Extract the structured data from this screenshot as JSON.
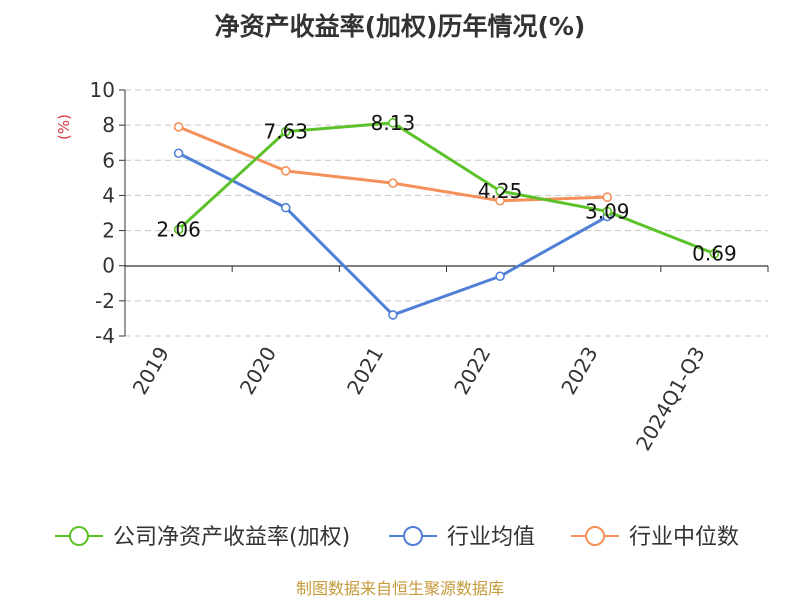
{
  "chart_data": {
    "type": "line",
    "title": "净资产收益率(加权)历年情况(%)",
    "ylabel": "(%)",
    "categories": [
      "2019",
      "2020",
      "2021",
      "2022",
      "2023",
      "2024Q1-Q3"
    ],
    "y_ticks": [
      "10",
      "8",
      "6",
      "4",
      "2",
      "0",
      "-2",
      "-4"
    ],
    "ylim": [
      -4,
      10
    ],
    "grid": "horizontal dashed",
    "legend_position": "bottom",
    "series": [
      {
        "name": "公司净资产收益率(加权)",
        "color": "#5cc22a",
        "values": [
          2.06,
          7.63,
          8.13,
          4.25,
          3.09,
          0.69
        ],
        "labels": [
          "2.06",
          "7.63",
          "8.13",
          "4.25",
          "3.09",
          "0.69"
        ]
      },
      {
        "name": "行业均值",
        "color": "#4f80d6",
        "values": [
          6.4,
          3.3,
          -2.8,
          -0.6,
          2.8,
          null
        ]
      },
      {
        "name": "行业中位数",
        "color": "#f5905a",
        "values": [
          7.9,
          5.4,
          4.7,
          3.7,
          3.9,
          null
        ]
      }
    ],
    "source": "制图数据来自恒生聚源数据库",
    "source_color": "#c49a3a",
    "ylabel_color": "#d9363e"
  }
}
